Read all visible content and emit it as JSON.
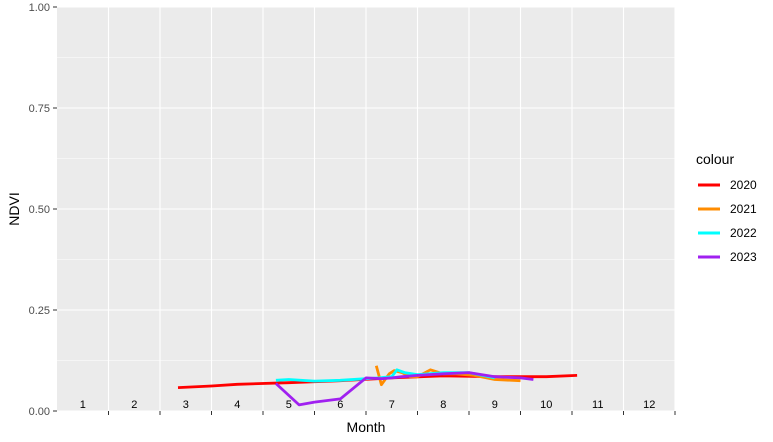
{
  "chart_data": {
    "type": "line",
    "xlabel": "Month",
    "ylabel": "NDVI",
    "x_ticks": [
      "1",
      "2",
      "3",
      "4",
      "5",
      "6",
      "7",
      "8",
      "9",
      "10",
      "11",
      "12"
    ],
    "xlim": [
      0.5,
      12.5
    ],
    "ylim": [
      0,
      1
    ],
    "y_ticks": [
      0,
      0.25,
      0.5,
      0.75,
      1
    ],
    "y_tick_labels": [
      "0.00",
      "0.25",
      "0.50",
      "0.75",
      "1.00"
    ],
    "grid": true,
    "legend": {
      "title": "colour",
      "position": "right"
    },
    "series": [
      {
        "name": "2020",
        "color": "#ff0000",
        "x": [
          2.85,
          3.5,
          4.0,
          5.0,
          6.0,
          7.0,
          8.0,
          9.0,
          10.0,
          10.6
        ],
        "y": [
          0.058,
          0.062,
          0.066,
          0.07,
          0.075,
          0.082,
          0.087,
          0.085,
          0.085,
          0.088
        ]
      },
      {
        "name": "2021",
        "color": "#ff8c00",
        "x": [
          6.7,
          6.8,
          6.95,
          7.05,
          7.2,
          7.35,
          7.5,
          7.75,
          8.0,
          8.25,
          8.6,
          9.0,
          9.5
        ],
        "y": [
          0.112,
          0.065,
          0.092,
          0.1,
          0.095,
          0.085,
          0.085,
          0.102,
          0.092,
          0.092,
          0.088,
          0.078,
          0.075
        ]
      },
      {
        "name": "2022",
        "color": "#00ffff",
        "x": [
          4.75,
          5.0,
          5.5,
          6.0,
          6.5,
          6.75,
          7.0,
          7.1,
          7.25,
          7.5,
          8.0,
          8.5,
          9.0
        ],
        "y": [
          0.076,
          0.078,
          0.074,
          0.076,
          0.08,
          0.082,
          0.085,
          0.102,
          0.095,
          0.09,
          0.095,
          0.095,
          0.082
        ]
      },
      {
        "name": "2023",
        "color": "#a020f0",
        "x": [
          4.75,
          5.2,
          5.5,
          6.0,
          6.5,
          6.8,
          7.0,
          7.2,
          7.5,
          8.0,
          8.5,
          9.0,
          9.5,
          9.75
        ],
        "y": [
          0.068,
          0.015,
          0.022,
          0.03,
          0.082,
          0.08,
          0.082,
          0.085,
          0.088,
          0.092,
          0.095,
          0.085,
          0.082,
          0.078
        ]
      }
    ]
  }
}
